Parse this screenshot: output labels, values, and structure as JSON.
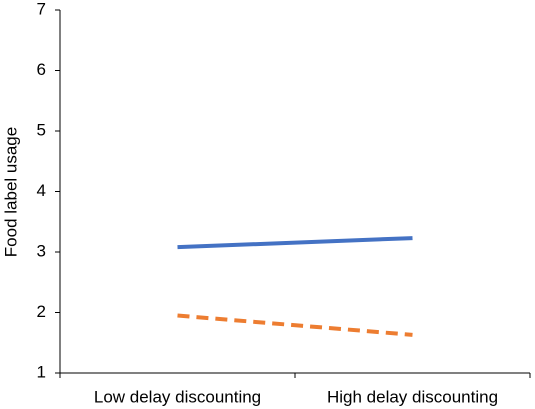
{
  "chart_data": {
    "type": "line",
    "y_label": "Food label usage",
    "categories": [
      "Low delay discounting",
      "High delay discounting"
    ],
    "series": [
      {
        "color": "#4472c4",
        "line_style": "solid",
        "values": [
          3.08,
          3.23
        ]
      },
      {
        "color": "#ed7d31",
        "line_style": "dashed",
        "values": [
          1.95,
          1.63
        ]
      }
    ],
    "ylim": [
      1,
      7
    ],
    "yticks": [
      1,
      2,
      3,
      4,
      5,
      6,
      7
    ]
  }
}
